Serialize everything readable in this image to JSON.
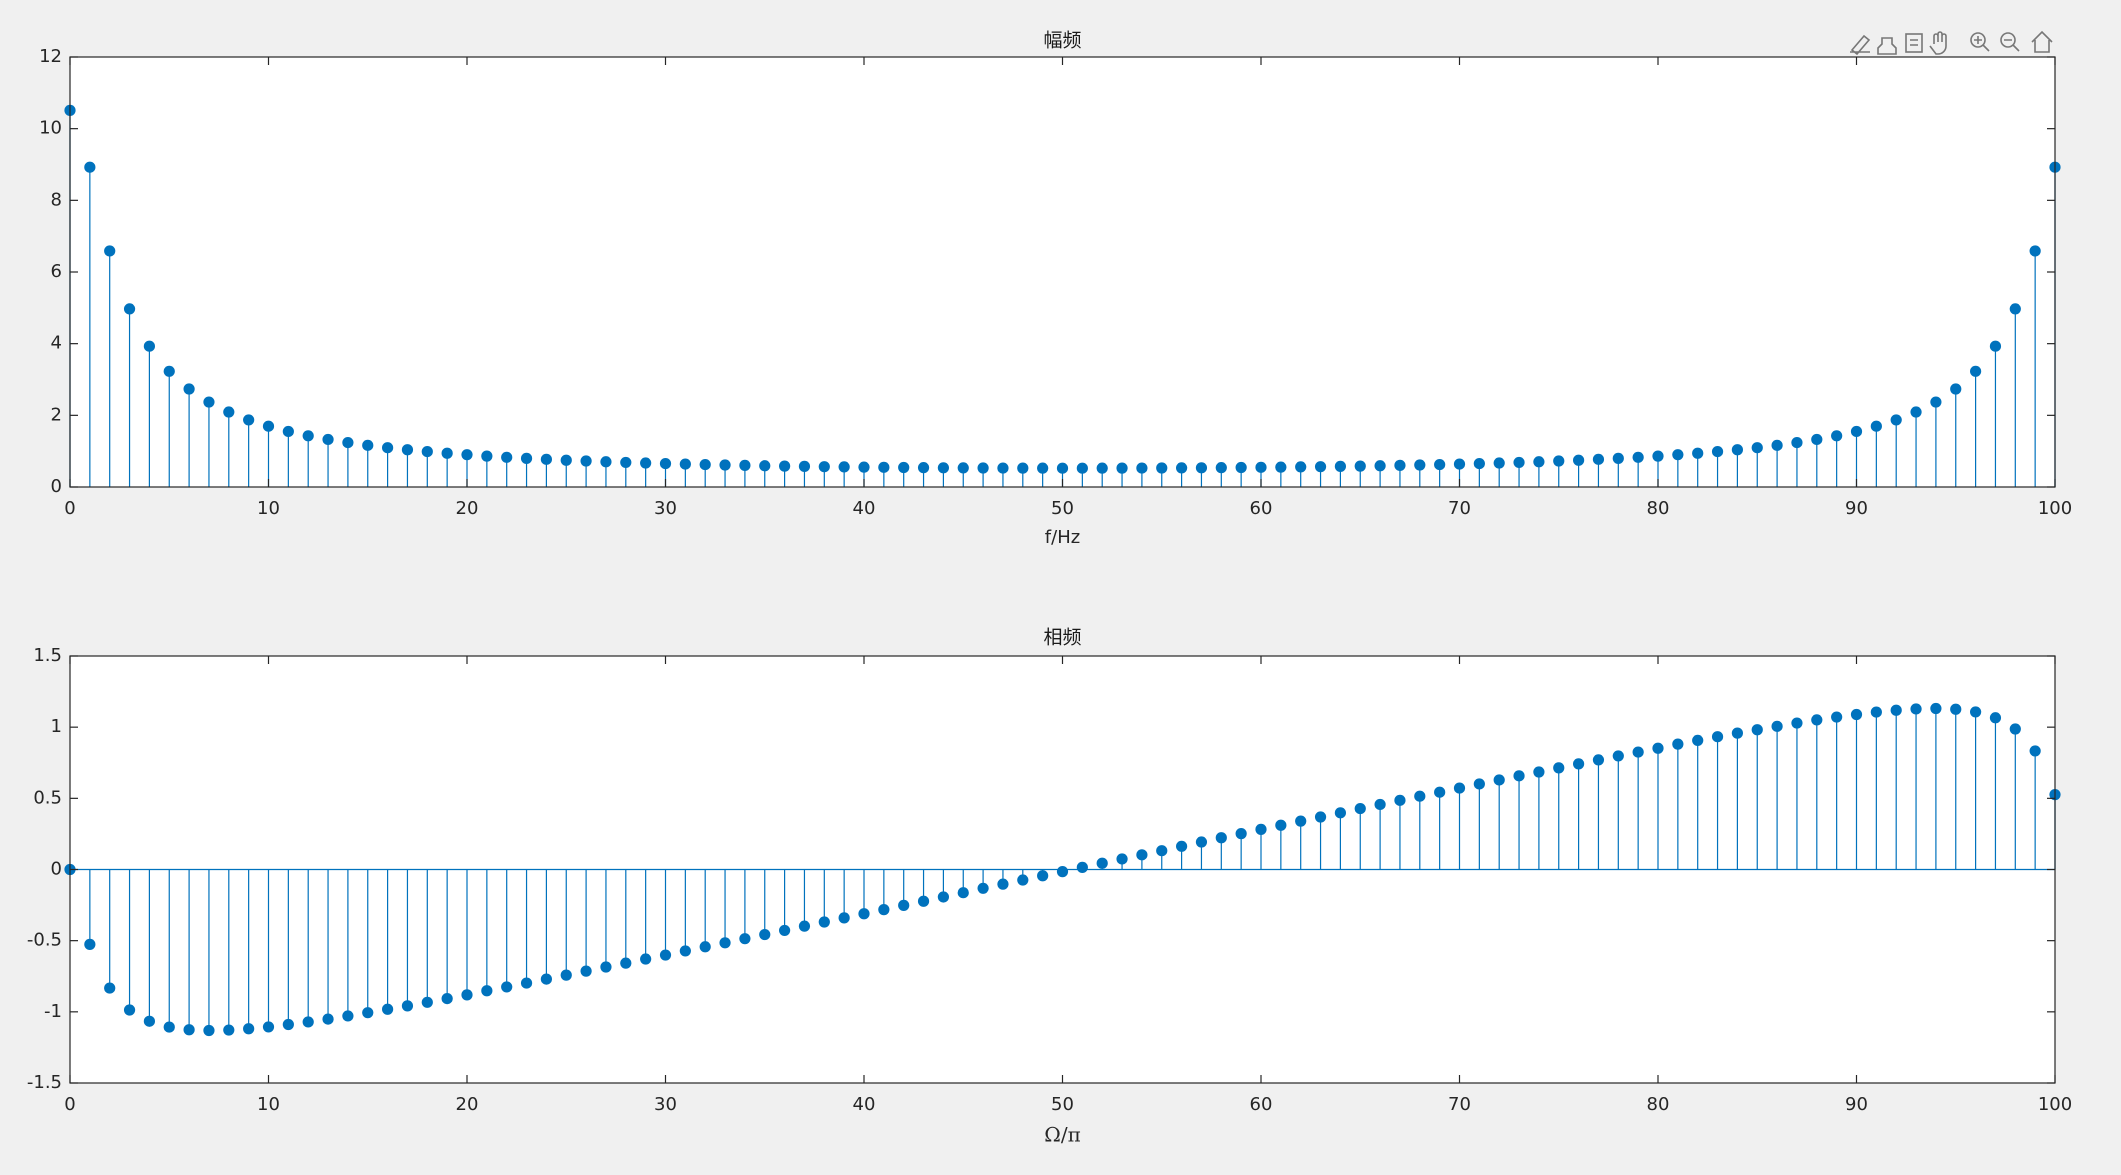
{
  "chart_data": [
    {
      "type": "stem",
      "title": "幅频",
      "xlabel": "f/Hz",
      "color": "#0072bd",
      "x": [
        0,
        1,
        2,
        3,
        4,
        5,
        6,
        7,
        8,
        9,
        10,
        11,
        12,
        13,
        14,
        15,
        16,
        17,
        18,
        19,
        20,
        21,
        22,
        23,
        24,
        25,
        26,
        27,
        28,
        29,
        30,
        31,
        32,
        33,
        34,
        35,
        36,
        37,
        38,
        39,
        40,
        41,
        42,
        43,
        44,
        45,
        46,
        47,
        48,
        49,
        50,
        51,
        52,
        53,
        54,
        55,
        56,
        57,
        58,
        59,
        60,
        61,
        62,
        63,
        64,
        65,
        66,
        67,
        68,
        69,
        70,
        71,
        72,
        73,
        74,
        75,
        76,
        77,
        78,
        79,
        80,
        81,
        82,
        83,
        84,
        85,
        86,
        87,
        88,
        89,
        90,
        91,
        92,
        93,
        94,
        95,
        96,
        97,
        98,
        99,
        100
      ],
      "values": [
        10.51,
        8.924,
        6.587,
        4.97,
        3.929,
        3.229,
        2.735,
        2.371,
        2.092,
        1.872,
        1.696,
        1.55,
        1.429,
        1.327,
        1.239,
        1.163,
        1.097,
        1.039,
        0.988,
        0.942,
        0.902,
        0.862,
        0.829,
        0.799,
        0.772,
        0.747,
        0.725,
        0.704,
        0.686,
        0.669,
        0.653,
        0.639,
        0.626,
        0.614,
        0.603,
        0.592,
        0.583,
        0.575,
        0.567,
        0.561,
        0.554,
        0.549,
        0.544,
        0.54,
        0.536,
        0.533,
        0.53,
        0.528,
        0.527,
        0.526,
        0.525,
        0.525,
        0.526,
        0.527,
        0.528,
        0.53,
        0.533,
        0.536,
        0.54,
        0.544,
        0.549,
        0.554,
        0.561,
        0.567,
        0.575,
        0.583,
        0.592,
        0.603,
        0.614,
        0.626,
        0.639,
        0.653,
        0.669,
        0.686,
        0.704,
        0.725,
        0.747,
        0.772,
        0.799,
        0.829,
        0.862,
        0.902,
        0.942,
        0.988,
        1.039,
        1.097,
        1.163,
        1.239,
        1.327,
        1.429,
        1.55,
        1.696,
        1.872,
        2.092,
        2.371,
        2.735,
        3.229,
        3.929,
        4.97,
        6.587,
        8.924
      ],
      "xlim": [
        0,
        100
      ],
      "xticks": [
        0,
        10,
        20,
        30,
        40,
        50,
        60,
        70,
        80,
        90,
        100
      ],
      "ylim": [
        0,
        12
      ],
      "yticks": [
        0,
        2,
        4,
        6,
        8,
        10,
        12
      ]
    },
    {
      "type": "stem",
      "title": "相频",
      "xlabel": "Ω/π",
      "color": "#0072bd",
      "x": [
        0,
        1,
        2,
        3,
        4,
        5,
        6,
        7,
        8,
        9,
        10,
        11,
        12,
        13,
        14,
        15,
        16,
        17,
        18,
        19,
        20,
        21,
        22,
        23,
        24,
        25,
        26,
        27,
        28,
        29,
        30,
        31,
        32,
        33,
        34,
        35,
        36,
        37,
        38,
        39,
        40,
        41,
        42,
        43,
        44,
        45,
        46,
        47,
        48,
        49,
        50,
        51,
        52,
        53,
        54,
        55,
        56,
        57,
        58,
        59,
        60,
        61,
        62,
        63,
        64,
        65,
        66,
        67,
        68,
        69,
        70,
        71,
        72,
        73,
        74,
        75,
        76,
        77,
        78,
        79,
        80,
        81,
        82,
        83,
        84,
        85,
        86,
        87,
        88,
        89,
        90,
        91,
        92,
        93,
        94,
        95,
        96,
        97,
        98,
        99,
        100
      ],
      "values": [
        0,
        -0.526,
        -0.833,
        -0.987,
        -1.066,
        -1.107,
        -1.126,
        -1.131,
        -1.128,
        -1.119,
        -1.106,
        -1.089,
        -1.071,
        -1.051,
        -1.029,
        -1.006,
        -0.982,
        -0.958,
        -0.933,
        -0.907,
        -0.881,
        -0.852,
        -0.825,
        -0.798,
        -0.77,
        -0.742,
        -0.714,
        -0.685,
        -0.658,
        -0.629,
        -0.601,
        -0.572,
        -0.543,
        -0.515,
        -0.486,
        -0.457,
        -0.428,
        -0.398,
        -0.369,
        -0.34,
        -0.311,
        -0.282,
        -0.252,
        -0.223,
        -0.193,
        -0.163,
        -0.132,
        -0.103,
        -0.074,
        -0.044,
        -0.015,
        0.015,
        0.044,
        0.074,
        0.103,
        0.132,
        0.163,
        0.193,
        0.223,
        0.252,
        0.282,
        0.311,
        0.34,
        0.369,
        0.398,
        0.428,
        0.457,
        0.486,
        0.515,
        0.543,
        0.572,
        0.601,
        0.629,
        0.658,
        0.685,
        0.714,
        0.742,
        0.77,
        0.798,
        0.825,
        0.852,
        0.881,
        0.907,
        0.933,
        0.958,
        0.982,
        1.006,
        1.029,
        1.051,
        1.071,
        1.089,
        1.106,
        1.119,
        1.128,
        1.131,
        1.126,
        1.107,
        1.066,
        0.987,
        0.833,
        0.526
      ],
      "xlim": [
        0,
        100
      ],
      "xticks": [
        0,
        10,
        20,
        30,
        40,
        50,
        60,
        70,
        80,
        90,
        100
      ],
      "ylim": [
        -1.5,
        1.5
      ],
      "yticks": [
        -1.5,
        -1,
        -0.5,
        0,
        0.5,
        1,
        1.5
      ]
    }
  ]
}
